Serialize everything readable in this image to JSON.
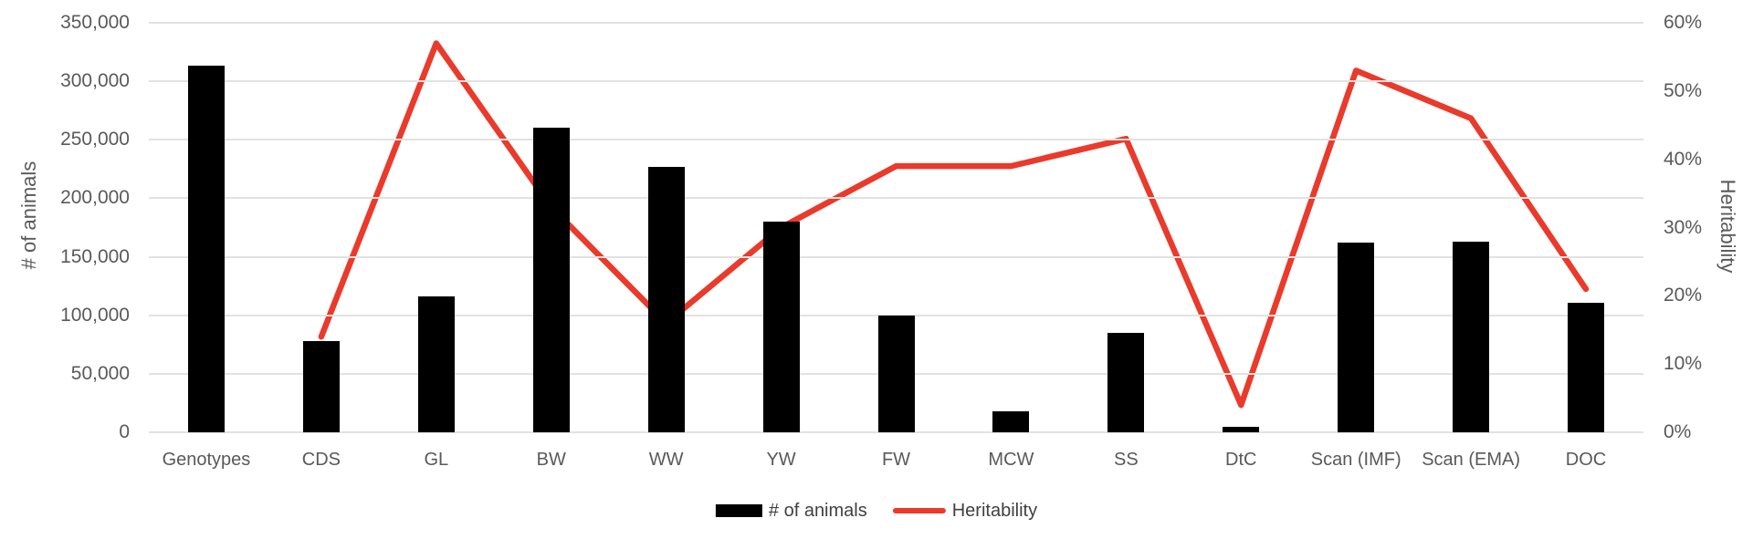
{
  "chart_data": {
    "type": "combo_bar_line",
    "title": "",
    "categories": [
      "Genotypes",
      "CDS",
      "GL",
      "BW",
      "WW",
      "YW",
      "FW",
      "MCW",
      "SS",
      "DtC",
      "Scan (IMF)",
      "Scan (EMA)",
      "DOC"
    ],
    "series": [
      {
        "name": "# of animals",
        "type": "bar",
        "axis": "left",
        "color": "#000000",
        "values": [
          313000,
          78000,
          116000,
          260000,
          227000,
          180000,
          100000,
          18000,
          85000,
          5000,
          162000,
          163000,
          111000
        ]
      },
      {
        "name": "Heritability",
        "type": "line",
        "axis": "right",
        "color": "#ea3a2b",
        "values": [
          null,
          14,
          57,
          33,
          16,
          30,
          39,
          39,
          43,
          4,
          53,
          46,
          21
        ]
      }
    ],
    "left_axis": {
      "title": "# of animals",
      "min": 0,
      "max": 350000,
      "step": 50000,
      "tick_labels": [
        "0",
        "50,000",
        "100,000",
        "150,000",
        "200,000",
        "250,000",
        "300,000",
        "350,000"
      ]
    },
    "right_axis": {
      "title": "Heritability",
      "min": 0,
      "max": 60,
      "step": 10,
      "tick_labels": [
        "0%",
        "10%",
        "20%",
        "30%",
        "40%",
        "50%",
        "60%"
      ]
    },
    "grid": true,
    "legend_position": "bottom",
    "legend": [
      {
        "label": "# of animals",
        "swatch": "bar",
        "color": "#000000"
      },
      {
        "label": "Heritability",
        "swatch": "line",
        "color": "#ea3a2b"
      }
    ]
  }
}
